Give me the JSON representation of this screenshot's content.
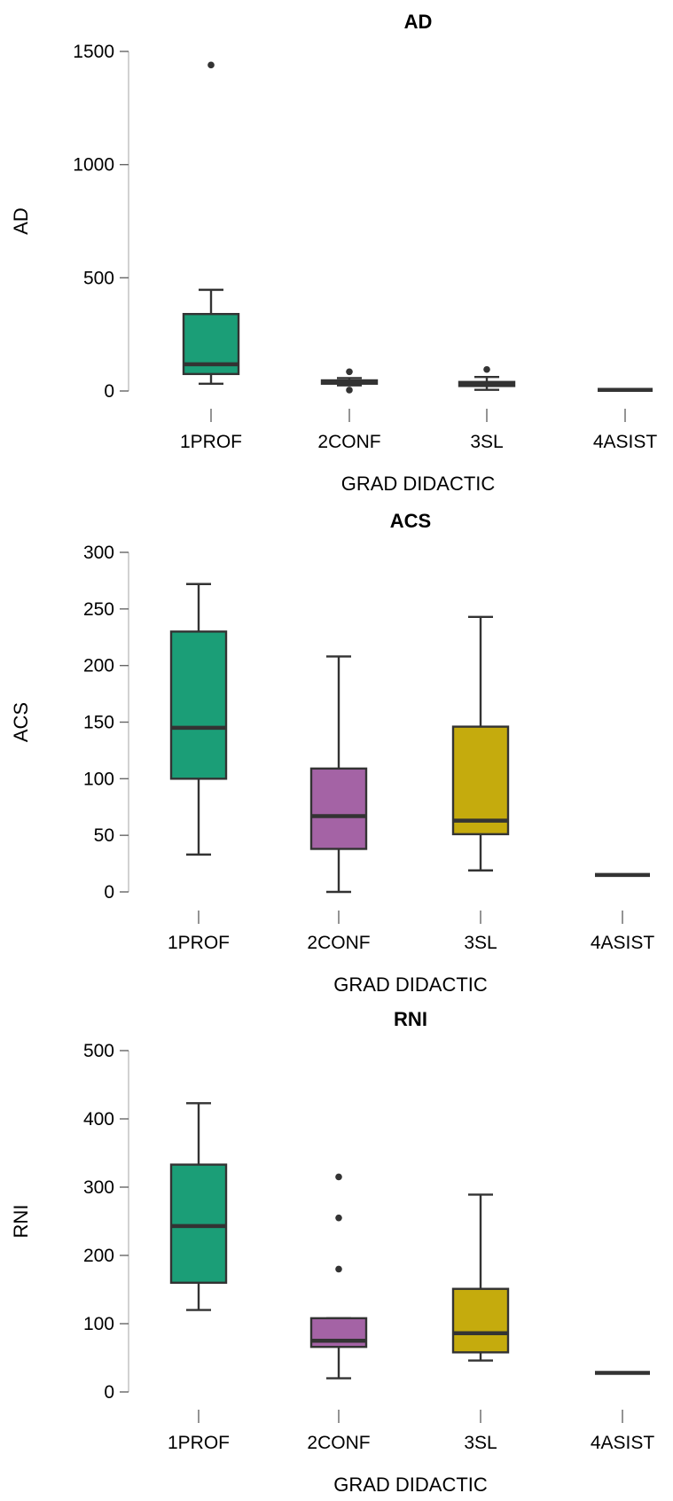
{
  "chart_data": [
    {
      "type": "box",
      "title": "AD",
      "xlabel": "GRAD DIDACTIC",
      "ylabel": "AD",
      "categories": [
        "1PROF",
        "2CONF",
        "3SL",
        "4ASIST"
      ],
      "ylim": [
        0,
        1500
      ],
      "yticks": [
        0,
        500,
        1000,
        1500
      ],
      "grid": false,
      "boxes": [
        {
          "category": "1PROF",
          "whisker_low": 32,
          "q1": 75,
          "median": 118,
          "q3": 340,
          "whisker_high": 447,
          "outliers": [
            1440
          ],
          "color": "#1b9e77"
        },
        {
          "category": "2CONF",
          "whisker_low": 25,
          "q1": 32,
          "median": 40,
          "q3": 47,
          "whisker_high": 57,
          "outliers": [
            85,
            4
          ],
          "color": "#1b9e77"
        },
        {
          "category": "3SL",
          "whisker_low": 5,
          "q1": 22,
          "median": 30,
          "q3": 40,
          "whisker_high": 62,
          "outliers": [
            95
          ],
          "color": "#1b9e77"
        },
        {
          "category": "4ASIST",
          "whisker_low": 5,
          "q1": 5,
          "median": 5,
          "q3": 5,
          "whisker_high": 5,
          "outliers": [],
          "color": "#1b9e77"
        }
      ]
    },
    {
      "type": "box",
      "title": "ACS",
      "xlabel": "GRAD DIDACTIC",
      "ylabel": "ACS",
      "categories": [
        "1PROF",
        "2CONF",
        "3SL",
        "4ASIST"
      ],
      "ylim": [
        0,
        300
      ],
      "yticks": [
        0,
        50,
        100,
        150,
        200,
        250,
        300
      ],
      "grid": false,
      "boxes": [
        {
          "category": "1PROF",
          "whisker_low": 33,
          "q1": 100,
          "median": 145,
          "q3": 230,
          "whisker_high": 272,
          "outliers": [],
          "color": "#1b9e77"
        },
        {
          "category": "2CONF",
          "whisker_low": 0,
          "q1": 38,
          "median": 67,
          "q3": 109,
          "whisker_high": 208,
          "outliers": [],
          "color": "#a463a5"
        },
        {
          "category": "3SL",
          "whisker_low": 19,
          "q1": 51,
          "median": 63,
          "q3": 146,
          "whisker_high": 243,
          "outliers": [],
          "color": "#c5ab0d"
        },
        {
          "category": "4ASIST",
          "whisker_low": 15,
          "q1": 15,
          "median": 15,
          "q3": 15,
          "whisker_high": 15,
          "outliers": [],
          "color": "#c5ab0d"
        }
      ]
    },
    {
      "type": "box",
      "title": "RNI",
      "xlabel": "GRAD DIDACTIC",
      "ylabel": "RNI",
      "categories": [
        "1PROF",
        "2CONF",
        "3SL",
        "4ASIST"
      ],
      "ylim": [
        0,
        500
      ],
      "yticks": [
        0,
        100,
        200,
        300,
        400,
        500
      ],
      "grid": false,
      "boxes": [
        {
          "category": "1PROF",
          "whisker_low": 120,
          "q1": 160,
          "median": 243,
          "q3": 333,
          "whisker_high": 423,
          "outliers": [],
          "color": "#1b9e77"
        },
        {
          "category": "2CONF",
          "whisker_low": 20,
          "q1": 66,
          "median": 75,
          "q3": 108,
          "whisker_high": 108,
          "outliers": [
            180,
            255,
            315
          ],
          "color": "#a463a5"
        },
        {
          "category": "3SL",
          "whisker_low": 46,
          "q1": 58,
          "median": 86,
          "q3": 151,
          "whisker_high": 289,
          "outliers": [],
          "color": "#c5ab0d"
        },
        {
          "category": "4ASIST",
          "whisker_low": 28,
          "q1": 28,
          "median": 28,
          "q3": 28,
          "whisker_high": 28,
          "outliers": [],
          "color": "#c5ab0d"
        }
      ]
    }
  ]
}
